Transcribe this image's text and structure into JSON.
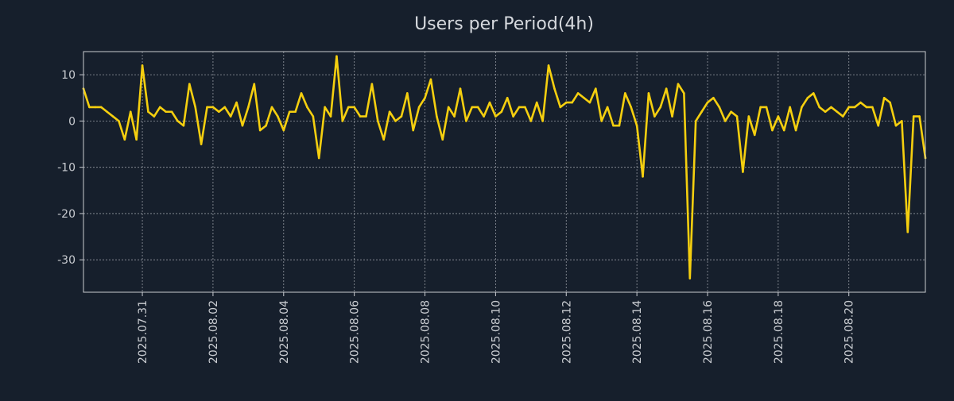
{
  "colors": {
    "background": "#161f2c",
    "plot_background": "#161f2c",
    "axis": "#c9ccd1",
    "grid": "#c9ccd1",
    "line": "#f5cf0f",
    "title": "#d6d9de",
    "tick_label": "#c9ccd1"
  },
  "chart_data": {
    "type": "line",
    "title": "Users per Period(4h)",
    "xlabel": "",
    "ylabel": "",
    "grid": true,
    "legend": "none",
    "ylim": [
      -37,
      15
    ],
    "yticks": [
      10,
      0,
      -10,
      -20,
      -30
    ],
    "ytick_labels": [
      "10",
      "0",
      "-10",
      "-20",
      "-30"
    ],
    "x_start_index": 0,
    "x_end_index": 143,
    "xticks": [
      {
        "index": 10,
        "label": "2025.07.31"
      },
      {
        "index": 22,
        "label": "2025.08.02"
      },
      {
        "index": 34,
        "label": "2025.08.04"
      },
      {
        "index": 46,
        "label": "2025.08.06"
      },
      {
        "index": 58,
        "label": "2025.08.08"
      },
      {
        "index": 70,
        "label": "2025.08.10"
      },
      {
        "index": 82,
        "label": "2025.08.12"
      },
      {
        "index": 94,
        "label": "2025.08.14"
      },
      {
        "index": 106,
        "label": "2025.08.16"
      },
      {
        "index": 118,
        "label": "2025.08.18"
      },
      {
        "index": 130,
        "label": "2025.08.20"
      }
    ],
    "series": [
      {
        "name": "Users per Period(4h)",
        "values": [
          7,
          3,
          3,
          3,
          2,
          1,
          0,
          -4,
          2,
          -4,
          12,
          2,
          1,
          3,
          2,
          2,
          0,
          -1,
          8,
          3,
          -5,
          3,
          3,
          2,
          3,
          1,
          4,
          -1,
          3,
          8,
          -2,
          -1,
          3,
          1,
          -2,
          2,
          2,
          6,
          3,
          1,
          -8,
          3,
          1,
          14,
          0,
          3,
          3,
          1,
          1,
          8,
          0,
          -4,
          2,
          0,
          1,
          6,
          -2,
          3,
          5,
          9,
          1,
          -4,
          3,
          1,
          7,
          0,
          3,
          3,
          1,
          4,
          1,
          2,
          5,
          1,
          3,
          3,
          0,
          4,
          0,
          12,
          7,
          3,
          4,
          4,
          6,
          5,
          4,
          7,
          0,
          3,
          -1,
          -1,
          6,
          3,
          -1,
          -12,
          6,
          1,
          3,
          7,
          1,
          8,
          6,
          -34,
          0,
          2,
          4,
          5,
          3,
          0,
          2,
          1,
          -11,
          1,
          -3,
          3,
          3,
          -2,
          1,
          -2,
          3,
          -2,
          3,
          5,
          6,
          3,
          2,
          3,
          2,
          1,
          3,
          3,
          4,
          3,
          3,
          -1,
          5,
          4,
          -1,
          0,
          -24,
          1,
          1,
          -8
        ]
      }
    ]
  }
}
